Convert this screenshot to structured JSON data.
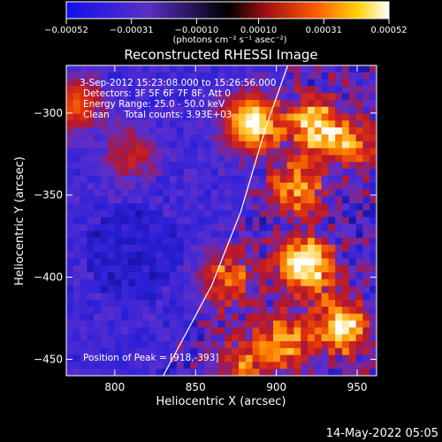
{
  "chart_data": {
    "type": "heatmap",
    "title": "Reconstructed RHESSI Image",
    "xlabel": "Heliocentric X (arcsec)",
    "ylabel": "Heliocentric Y (arcsec)",
    "xlim": [
      770,
      962
    ],
    "ylim": [
      -460,
      -271
    ],
    "x_ticks": [
      800,
      850,
      900,
      950
    ],
    "y_ticks": [
      -300,
      -350,
      -400,
      -450
    ],
    "x_tick_labels": [
      "800",
      "850",
      "900",
      "950"
    ],
    "y_tick_labels": [
      "−300",
      "−350",
      "−400",
      "−450"
    ],
    "colorbar": {
      "range": [
        -0.00052,
        0.00052
      ],
      "ticks": [
        -0.00052,
        -0.00031,
        -0.0001,
        0.0001,
        0.00031,
        0.00052
      ],
      "tick_labels": [
        "−0.00052",
        "−0.00031",
        "−0.00010",
        "0.00010",
        "0.00031",
        "0.00052"
      ],
      "unit_label": "(photons cm⁻² s⁻¹ asec⁻²)"
    },
    "annotations": {
      "time_range": "3-Sep-2012 15:23:08.000 to 15:26:56.000",
      "detectors": "Detectors: 3F 5F 6F 7F 8F, Att 0",
      "energy_range": "Energy Range: 25.0 - 50.0 keV",
      "clean": "Clean     Total counts: 3.93E+03",
      "peak": "Position of Peak = [918,-393]"
    },
    "peak": [
      918,
      -393
    ],
    "sources": [
      {
        "x": 885,
        "y": -306,
        "strength": 0.95
      },
      {
        "x": 923,
        "y": -307,
        "strength": 0.75
      },
      {
        "x": 945,
        "y": -318,
        "strength": 0.55
      },
      {
        "x": 913,
        "y": -345,
        "strength": 0.6
      },
      {
        "x": 918,
        "y": -393,
        "strength": 1.0
      },
      {
        "x": 940,
        "y": -430,
        "strength": 0.85
      },
      {
        "x": 905,
        "y": -438,
        "strength": 0.6
      },
      {
        "x": 870,
        "y": -400,
        "strength": 0.5
      },
      {
        "x": 880,
        "y": -455,
        "strength": 0.45
      },
      {
        "x": 775,
        "y": -295,
        "strength": 0.45
      },
      {
        "x": 810,
        "y": -325,
        "strength": 0.3
      }
    ],
    "limb_curve": [
      [
        830,
        -460
      ],
      [
        860,
        -405
      ],
      [
        878,
        -360
      ],
      [
        893,
        -310
      ],
      [
        907,
        -271
      ]
    ],
    "colormap": [
      "#000000",
      "#0b0b7a",
      "#2a1fd8",
      "#5a2fd0",
      "#b21630",
      "#e03010",
      "#ff8a00",
      "#ffd040",
      "#ffffff"
    ]
  },
  "footer": {
    "date": "14-May-2022 05:05"
  }
}
